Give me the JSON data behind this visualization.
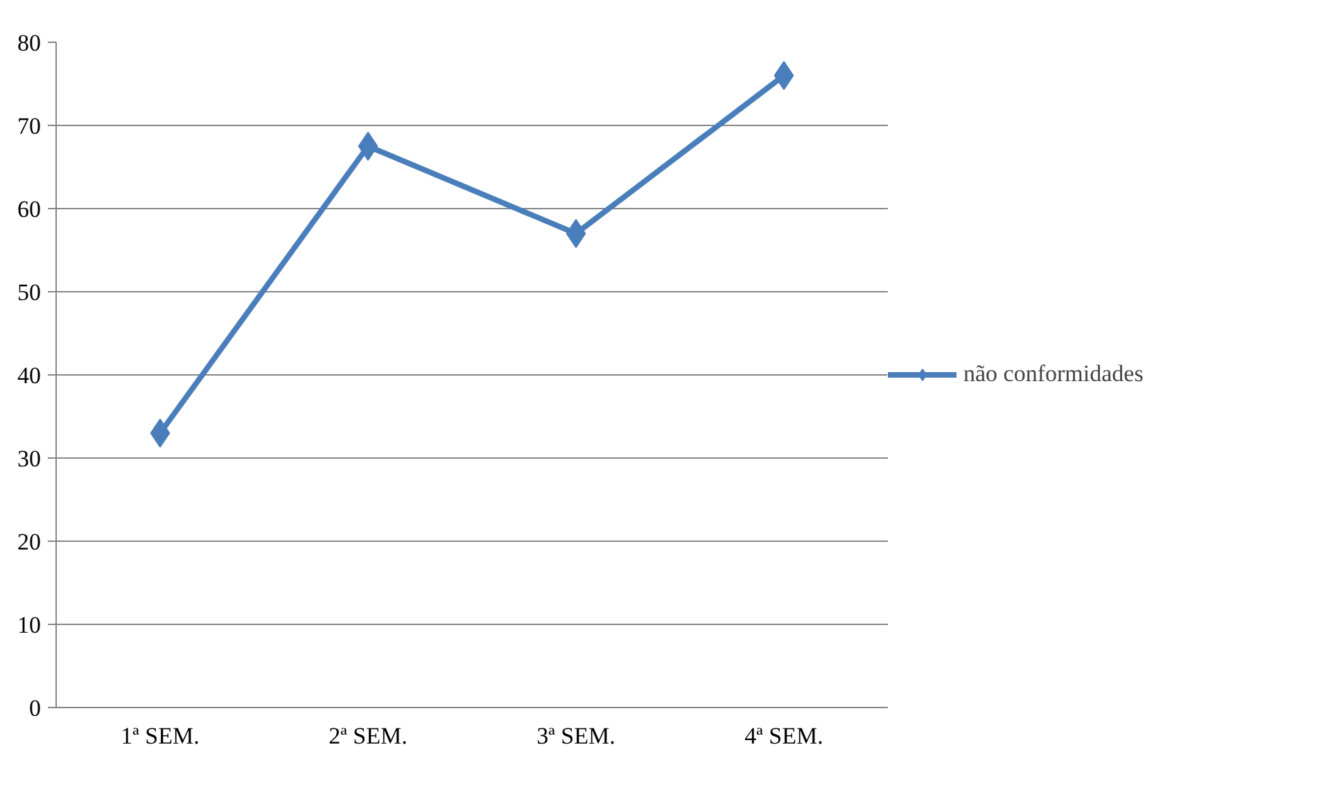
{
  "chart_data": {
    "type": "line",
    "categories": [
      "1ª SEM.",
      "2ª SEM.",
      "3ª SEM.",
      "4ª SEM."
    ],
    "series": [
      {
        "name": "não conformidades",
        "color": "#4a7ebb",
        "values": [
          33,
          67.5,
          57,
          76
        ]
      }
    ],
    "ylim": [
      0,
      80
    ],
    "yticks": [
      0,
      10,
      20,
      30,
      40,
      50,
      60,
      70,
      80
    ],
    "grid": "y",
    "legend": "right",
    "marker": "diamond",
    "line_style": "solid"
  }
}
